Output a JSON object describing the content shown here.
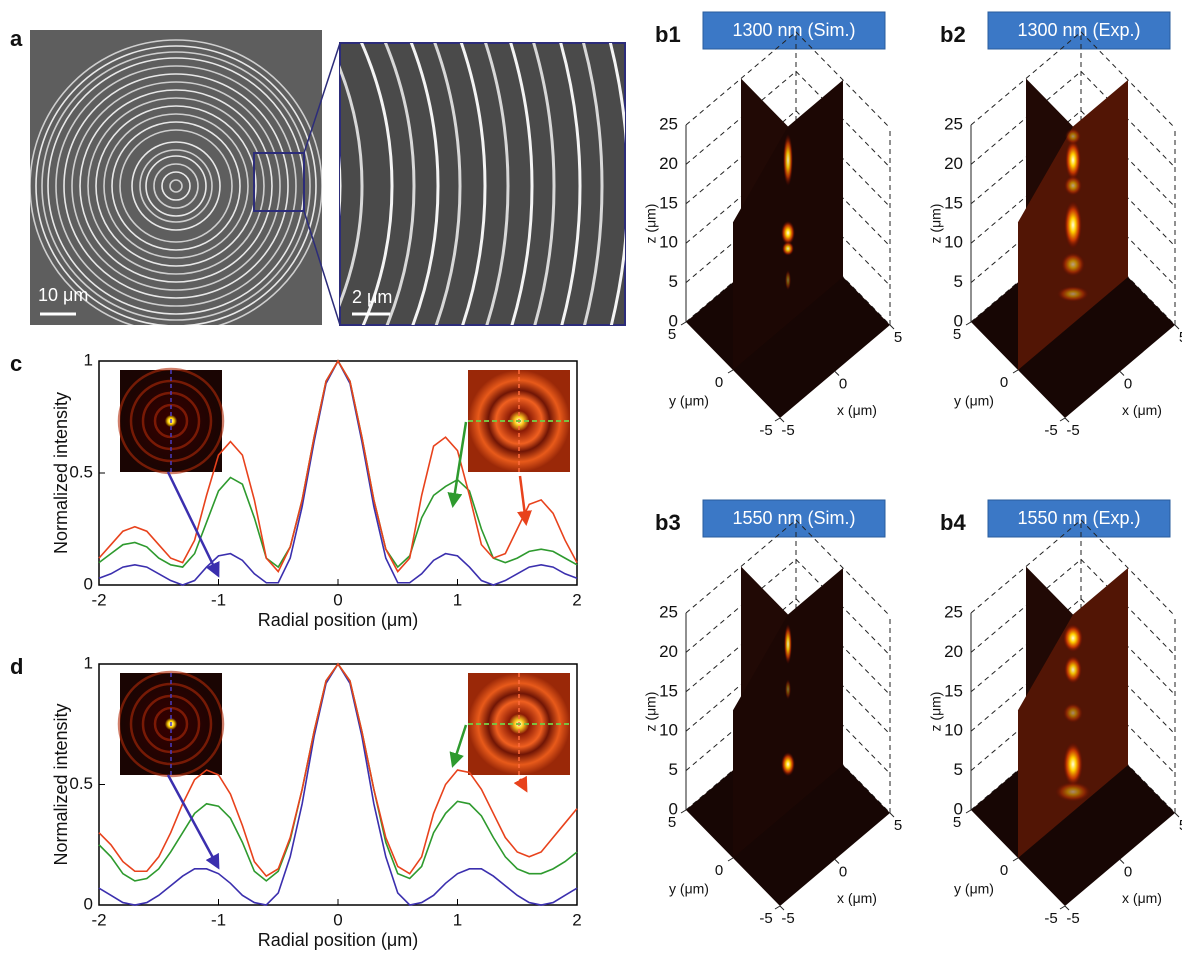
{
  "panel_a": {
    "label": "a",
    "scale_left": "10 μm",
    "scale_right": "2 μm"
  },
  "chart_data": [
    {
      "type": "line",
      "label": "c",
      "xlabel": "Radial position (μm)",
      "ylabel": "Normalized intensity",
      "x": [
        -2,
        -1.9,
        -1.8,
        -1.7,
        -1.6,
        -1.5,
        -1.4,
        -1.3,
        -1.2,
        -1.1,
        -1,
        -0.9,
        -0.8,
        -0.7,
        -0.6,
        -0.5,
        -0.4,
        -0.3,
        -0.2,
        -0.1,
        0,
        0.1,
        0.2,
        0.3,
        0.4,
        0.5,
        0.6,
        0.7,
        0.8,
        0.9,
        1,
        1.1,
        1.2,
        1.3,
        1.4,
        1.5,
        1.6,
        1.7,
        1.8,
        1.9,
        2
      ],
      "xlim": [
        -2,
        2
      ],
      "ylim": [
        0,
        1
      ],
      "xticks": [
        -2,
        -1,
        0,
        1,
        2
      ],
      "yticks": [
        0,
        0.5,
        1
      ],
      "series": [
        {
          "color": "#3b2fae",
          "values": [
            0.03,
            0.05,
            0.08,
            0.09,
            0.08,
            0.05,
            0.02,
            0,
            0.02,
            0.08,
            0.13,
            0.14,
            0.11,
            0.05,
            0.01,
            0.01,
            0.12,
            0.35,
            0.64,
            0.9,
            1,
            0.9,
            0.64,
            0.35,
            0.12,
            0.01,
            0.01,
            0.05,
            0.11,
            0.14,
            0.13,
            0.08,
            0.02,
            0,
            0.02,
            0.05,
            0.08,
            0.09,
            0.08,
            0.05,
            0.03
          ]
        },
        {
          "color": "#2e9a2e",
          "values": [
            0.1,
            0.14,
            0.18,
            0.19,
            0.17,
            0.12,
            0.09,
            0.08,
            0.14,
            0.28,
            0.42,
            0.48,
            0.45,
            0.3,
            0.12,
            0.08,
            0.17,
            0.38,
            0.66,
            0.91,
            1,
            0.91,
            0.66,
            0.38,
            0.16,
            0.08,
            0.13,
            0.3,
            0.4,
            0.44,
            0.47,
            0.42,
            0.25,
            0.12,
            0.1,
            0.12,
            0.15,
            0.16,
            0.15,
            0.12,
            0.09
          ]
        },
        {
          "color": "#e8421c",
          "values": [
            0.12,
            0.18,
            0.24,
            0.26,
            0.24,
            0.18,
            0.12,
            0.1,
            0.2,
            0.4,
            0.58,
            0.64,
            0.58,
            0.38,
            0.12,
            0.06,
            0.17,
            0.38,
            0.66,
            0.91,
            1,
            0.91,
            0.66,
            0.38,
            0.16,
            0.06,
            0.12,
            0.4,
            0.62,
            0.66,
            0.6,
            0.4,
            0.18,
            0.12,
            0.14,
            0.25,
            0.36,
            0.38,
            0.32,
            0.2,
            0.1
          ]
        }
      ]
    },
    {
      "type": "line",
      "label": "d",
      "xlabel": "Radial position (μm)",
      "ylabel": "Normalized intensity",
      "x": [
        -2,
        -1.9,
        -1.8,
        -1.7,
        -1.6,
        -1.5,
        -1.4,
        -1.3,
        -1.2,
        -1.1,
        -1,
        -0.9,
        -0.8,
        -0.7,
        -0.6,
        -0.5,
        -0.4,
        -0.3,
        -0.2,
        -0.1,
        0,
        0.1,
        0.2,
        0.3,
        0.4,
        0.5,
        0.6,
        0.7,
        0.8,
        0.9,
        1,
        1.1,
        1.2,
        1.3,
        1.4,
        1.5,
        1.6,
        1.7,
        1.8,
        1.9,
        2
      ],
      "xlim": [
        -2,
        2
      ],
      "ylim": [
        0,
        1
      ],
      "xticks": [
        -2,
        -1,
        0,
        1,
        2
      ],
      "yticks": [
        0,
        0.5,
        1
      ],
      "series": [
        {
          "color": "#3b2fae",
          "values": [
            0.07,
            0.04,
            0.01,
            0,
            0.01,
            0.04,
            0.08,
            0.12,
            0.15,
            0.15,
            0.13,
            0.09,
            0.04,
            0.01,
            0,
            0.05,
            0.2,
            0.42,
            0.7,
            0.92,
            1,
            0.92,
            0.7,
            0.42,
            0.2,
            0.05,
            0,
            0.01,
            0.04,
            0.09,
            0.13,
            0.15,
            0.15,
            0.12,
            0.08,
            0.04,
            0.01,
            0,
            0.01,
            0.04,
            0.07
          ]
        },
        {
          "color": "#2e9a2e",
          "values": [
            0.25,
            0.2,
            0.13,
            0.1,
            0.11,
            0.15,
            0.22,
            0.3,
            0.38,
            0.42,
            0.41,
            0.36,
            0.26,
            0.14,
            0.1,
            0.14,
            0.27,
            0.48,
            0.72,
            0.93,
            1,
            0.93,
            0.72,
            0.48,
            0.26,
            0.13,
            0.11,
            0.16,
            0.3,
            0.38,
            0.43,
            0.42,
            0.37,
            0.28,
            0.2,
            0.15,
            0.13,
            0.13,
            0.15,
            0.18,
            0.22
          ]
        },
        {
          "color": "#e8421c",
          "values": [
            0.3,
            0.25,
            0.18,
            0.14,
            0.14,
            0.2,
            0.3,
            0.42,
            0.52,
            0.56,
            0.54,
            0.46,
            0.33,
            0.18,
            0.12,
            0.15,
            0.28,
            0.48,
            0.72,
            0.93,
            1,
            0.93,
            0.72,
            0.48,
            0.28,
            0.16,
            0.13,
            0.2,
            0.38,
            0.5,
            0.56,
            0.55,
            0.48,
            0.38,
            0.28,
            0.22,
            0.2,
            0.22,
            0.28,
            0.34,
            0.4
          ]
        }
      ]
    },
    {
      "type": "volume3d",
      "label": "b1",
      "title": "1300 nm (Sim.)",
      "xlabel": "x (μm)",
      "ylabel": "y (μm)",
      "zlabel": "z (μm)",
      "xlim": [
        -5,
        5
      ],
      "ylim": [
        -5,
        5
      ],
      "zlim": [
        0,
        25
      ],
      "xticks": [
        -5,
        0,
        5
      ],
      "yticks": [
        -5,
        0,
        5
      ],
      "zticks": [
        0,
        5,
        10,
        15,
        20,
        25
      ]
    },
    {
      "type": "volume3d",
      "label": "b2",
      "title": "1300 nm (Exp.)",
      "xlabel": "x (μm)",
      "ylabel": "y (μm)",
      "zlabel": "z (μm)",
      "xlim": [
        -5,
        5
      ],
      "ylim": [
        -5,
        5
      ],
      "zlim": [
        0,
        25
      ],
      "xticks": [
        -5,
        0,
        5
      ],
      "yticks": [
        -5,
        0,
        5
      ],
      "zticks": [
        0,
        5,
        10,
        15,
        20,
        25
      ]
    },
    {
      "type": "volume3d",
      "label": "b3",
      "title": "1550 nm (Sim.)",
      "xlabel": "x (μm)",
      "ylabel": "y (μm)",
      "zlabel": "z (μm)",
      "xlim": [
        -5,
        5
      ],
      "ylim": [
        -5,
        5
      ],
      "zlim": [
        0,
        25
      ],
      "xticks": [
        -5,
        0,
        5
      ],
      "yticks": [
        -5,
        0,
        5
      ],
      "zticks": [
        0,
        5,
        10,
        15,
        20,
        25
      ]
    },
    {
      "type": "volume3d",
      "label": "b4",
      "title": "1550 nm (Exp.)",
      "xlabel": "x (μm)",
      "ylabel": "y (μm)",
      "zlabel": "z (μm)",
      "xlim": [
        -5,
        5
      ],
      "ylim": [
        -5,
        5
      ],
      "zlim": [
        0,
        25
      ],
      "xticks": [
        -5,
        0,
        5
      ],
      "yticks": [
        -5,
        0,
        5
      ],
      "zticks": [
        0,
        5,
        10,
        15,
        20,
        25
      ]
    }
  ]
}
